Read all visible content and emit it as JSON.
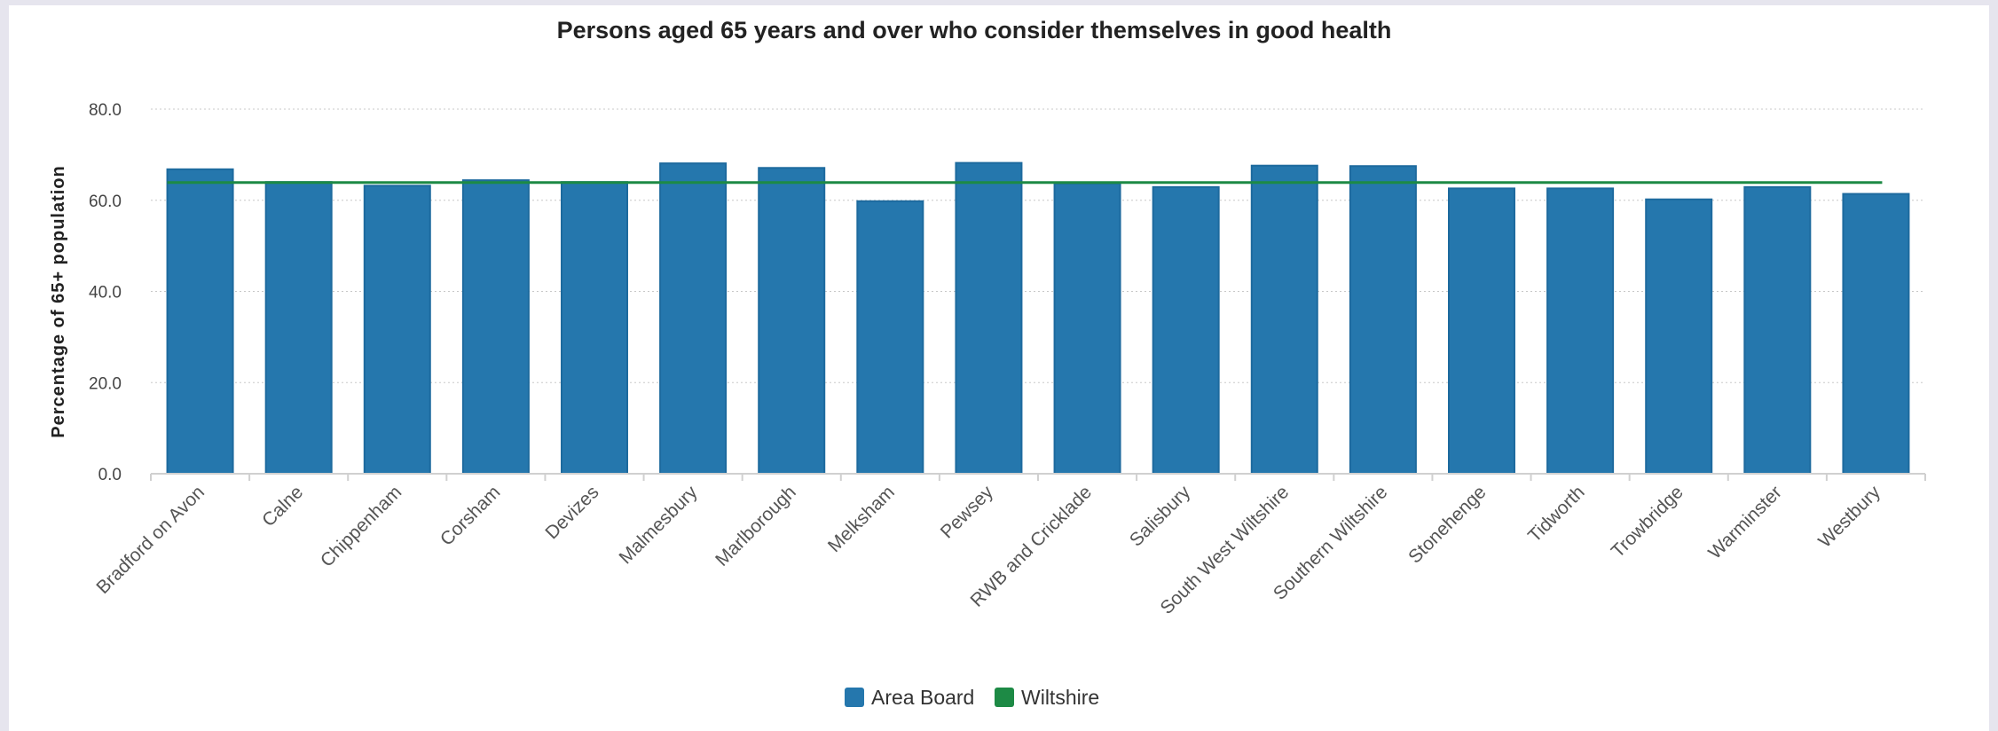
{
  "chart_data": {
    "type": "bar",
    "title": "Persons aged 65 years and over who consider themselves in good health",
    "xlabel": "",
    "ylabel": "Percentage of 65+ population",
    "ylim": [
      0,
      80
    ],
    "yticks": [
      "0.0",
      "20.0",
      "40.0",
      "60.0",
      "80.0"
    ],
    "grid": true,
    "legend_position": "bottom-center",
    "categories": [
      "Bradford on Avon",
      "Calne",
      "Chippenham",
      "Corsham",
      "Devizes",
      "Malmesbury",
      "Marlborough",
      "Melksham",
      "Pewsey",
      "RWB and Cricklade",
      "Salisbury",
      "South West Wiltshire",
      "Southern Wiltshire",
      "Stonehenge",
      "Tidworth",
      "Trowbridge",
      "Warminster",
      "Westbury"
    ],
    "series": [
      {
        "name": "Area Board",
        "type": "bar",
        "color": "#2577ad",
        "values": [
          66.8,
          64.0,
          63.2,
          64.4,
          64.0,
          68.1,
          67.1,
          59.8,
          68.2,
          63.7,
          62.9,
          67.6,
          67.5,
          62.6,
          62.6,
          60.2,
          62.9,
          61.4
        ]
      },
      {
        "name": "Wiltshire",
        "type": "line",
        "color": "#1d8a45",
        "value": 63.9
      }
    ]
  }
}
